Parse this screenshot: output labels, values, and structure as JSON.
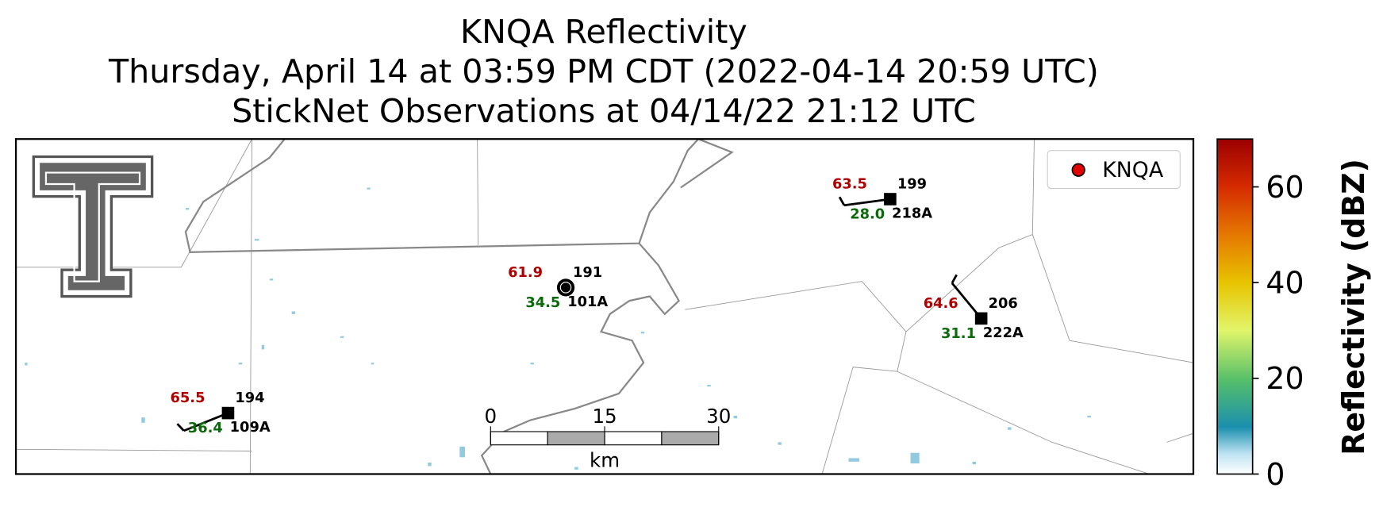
{
  "title": {
    "lines": [
      "KNQA Reflectivity",
      "Thursday, April 14 at 03:59 PM CDT (2022-04-14 20:59 UTC)",
      "StickNet Observations at 04/14/22 21:12 UTC"
    ]
  },
  "legend": {
    "label": "KNQA",
    "color": "#e00000"
  },
  "stations": [
    {
      "temperature": "63.5",
      "dewpoint": "28.0",
      "number": "199",
      "id": "218A"
    },
    {
      "temperature": "61.9",
      "dewpoint": "34.5",
      "number": "191",
      "id": "101A"
    },
    {
      "temperature": "64.6",
      "dewpoint": "31.1",
      "number": "206",
      "id": "222A"
    },
    {
      "temperature": "65.5",
      "dewpoint": "36.4",
      "number": "194",
      "id": "109A"
    }
  ],
  "scale_bar": {
    "ticks": [
      0,
      15,
      30
    ],
    "unit": "km"
  },
  "colorbar": {
    "label": "Reflectivity (dBZ)",
    "lim": [
      0,
      70
    ],
    "ticks": [
      0,
      20,
      40,
      60
    ]
  }
}
